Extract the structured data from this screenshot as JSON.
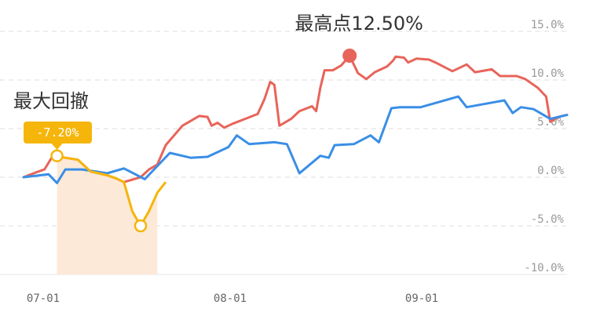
{
  "chart_data": {
    "type": "line",
    "x_ticks": [
      "07-01",
      "08-01",
      "09-01"
    ],
    "y_ticks": [
      "15.0%",
      "10.0%",
      "5.0%",
      "0.0%",
      "-5.0%",
      "-10.0%"
    ],
    "ylim": [
      -10,
      15
    ],
    "grid": true,
    "annotations": {
      "max_point_label": "最高点12.50%",
      "max_drawdown_label": "最大回撤",
      "drawdown_value_label": "-7.20%"
    },
    "colors": {
      "series_red": "#e8645a",
      "series_blue": "#3a8ee6",
      "drawdown": "#f5b50a",
      "drawdown_fill": "#fde9d8",
      "badge": "#f5b50a"
    },
    "series": [
      {
        "color": "#e8645a",
        "points": [
          [
            0,
            0.0
          ],
          [
            1.5,
            0.5
          ],
          [
            2.5,
            0.8
          ],
          [
            3.5,
            2.2
          ],
          [
            5,
            2.0
          ],
          [
            6.5,
            1.8
          ],
          [
            8,
            0.6
          ],
          [
            10,
            0.2
          ],
          [
            11,
            -0.1
          ],
          [
            12,
            -0.5
          ],
          [
            14,
            0.0
          ],
          [
            15,
            0.8
          ],
          [
            16,
            1.3
          ],
          [
            17,
            3.3
          ],
          [
            19,
            5.3
          ],
          [
            21,
            6.3
          ],
          [
            22,
            6.2
          ],
          [
            22.5,
            5.3
          ],
          [
            23.2,
            5.6
          ],
          [
            24,
            5.1
          ],
          [
            25,
            5.5
          ],
          [
            26.5,
            6.0
          ],
          [
            28,
            6.5
          ],
          [
            28.8,
            8.0
          ],
          [
            29.5,
            9.8
          ],
          [
            30,
            9.5
          ],
          [
            30.6,
            5.3
          ],
          [
            32,
            6.0
          ],
          [
            33,
            6.8
          ],
          [
            34.5,
            7.3
          ],
          [
            35,
            6.8
          ],
          [
            35.5,
            9.2
          ],
          [
            36,
            11.0
          ],
          [
            37,
            11.0
          ],
          [
            38,
            11.5
          ],
          [
            39,
            12.5
          ],
          [
            40,
            10.7
          ],
          [
            41,
            10.1
          ],
          [
            42,
            10.8
          ],
          [
            43.5,
            11.4
          ],
          [
            44.2,
            12.0
          ],
          [
            44.5,
            12.4
          ],
          [
            45.5,
            12.3
          ],
          [
            46,
            11.8
          ],
          [
            47,
            12.2
          ],
          [
            48.5,
            12.1
          ],
          [
            49.5,
            11.7
          ],
          [
            51.3,
            10.9
          ],
          [
            53,
            11.6
          ],
          [
            54,
            10.8
          ],
          [
            56,
            11.1
          ],
          [
            57,
            10.4
          ],
          [
            59,
            10.4
          ],
          [
            60,
            10.1
          ],
          [
            61.5,
            9.2
          ],
          [
            62.5,
            8.3
          ],
          [
            63,
            5.7
          ],
          [
            64,
            6.2
          ],
          [
            65,
            6.4
          ]
        ]
      },
      {
        "color": "#3a8ee6",
        "points": [
          [
            0,
            0.0
          ],
          [
            3,
            0.3
          ],
          [
            4,
            -0.6
          ],
          [
            5,
            0.8
          ],
          [
            7,
            0.8
          ],
          [
            10,
            0.4
          ],
          [
            12,
            0.9
          ],
          [
            14.5,
            -0.2
          ],
          [
            17.5,
            2.5
          ],
          [
            20,
            2.0
          ],
          [
            22,
            2.1
          ],
          [
            24.5,
            3.1
          ],
          [
            25.5,
            4.3
          ],
          [
            27,
            3.4
          ],
          [
            30,
            3.6
          ],
          [
            31.5,
            3.4
          ],
          [
            33,
            0.4
          ],
          [
            35.5,
            2.2
          ],
          [
            36.5,
            2.0
          ],
          [
            37.2,
            3.3
          ],
          [
            39.5,
            3.4
          ],
          [
            41.5,
            4.3
          ],
          [
            42.5,
            3.6
          ],
          [
            44,
            7.1
          ],
          [
            45,
            7.2
          ],
          [
            47.5,
            7.2
          ],
          [
            52,
            8.3
          ],
          [
            53,
            7.2
          ],
          [
            57.5,
            7.9
          ],
          [
            58.5,
            6.6
          ],
          [
            59.5,
            7.2
          ],
          [
            61,
            7.0
          ],
          [
            63,
            6.0
          ],
          [
            65,
            6.4
          ]
        ]
      }
    ],
    "drawdown": {
      "points": [
        [
          4,
          2.2
        ],
        [
          5,
          2.0
        ],
        [
          6.5,
          1.8
        ],
        [
          8,
          0.6
        ],
        [
          10,
          0.2
        ],
        [
          11,
          -0.1
        ],
        [
          12,
          -0.5
        ],
        [
          13,
          -3.5
        ],
        [
          14,
          -5.0
        ],
        [
          15,
          -3.5
        ],
        [
          16,
          -1.6
        ],
        [
          17,
          -0.5
        ]
      ],
      "peak": [
        4,
        2.2
      ],
      "trough": [
        14,
        -5.0
      ]
    },
    "max_point": [
      39,
      12.5
    ]
  }
}
